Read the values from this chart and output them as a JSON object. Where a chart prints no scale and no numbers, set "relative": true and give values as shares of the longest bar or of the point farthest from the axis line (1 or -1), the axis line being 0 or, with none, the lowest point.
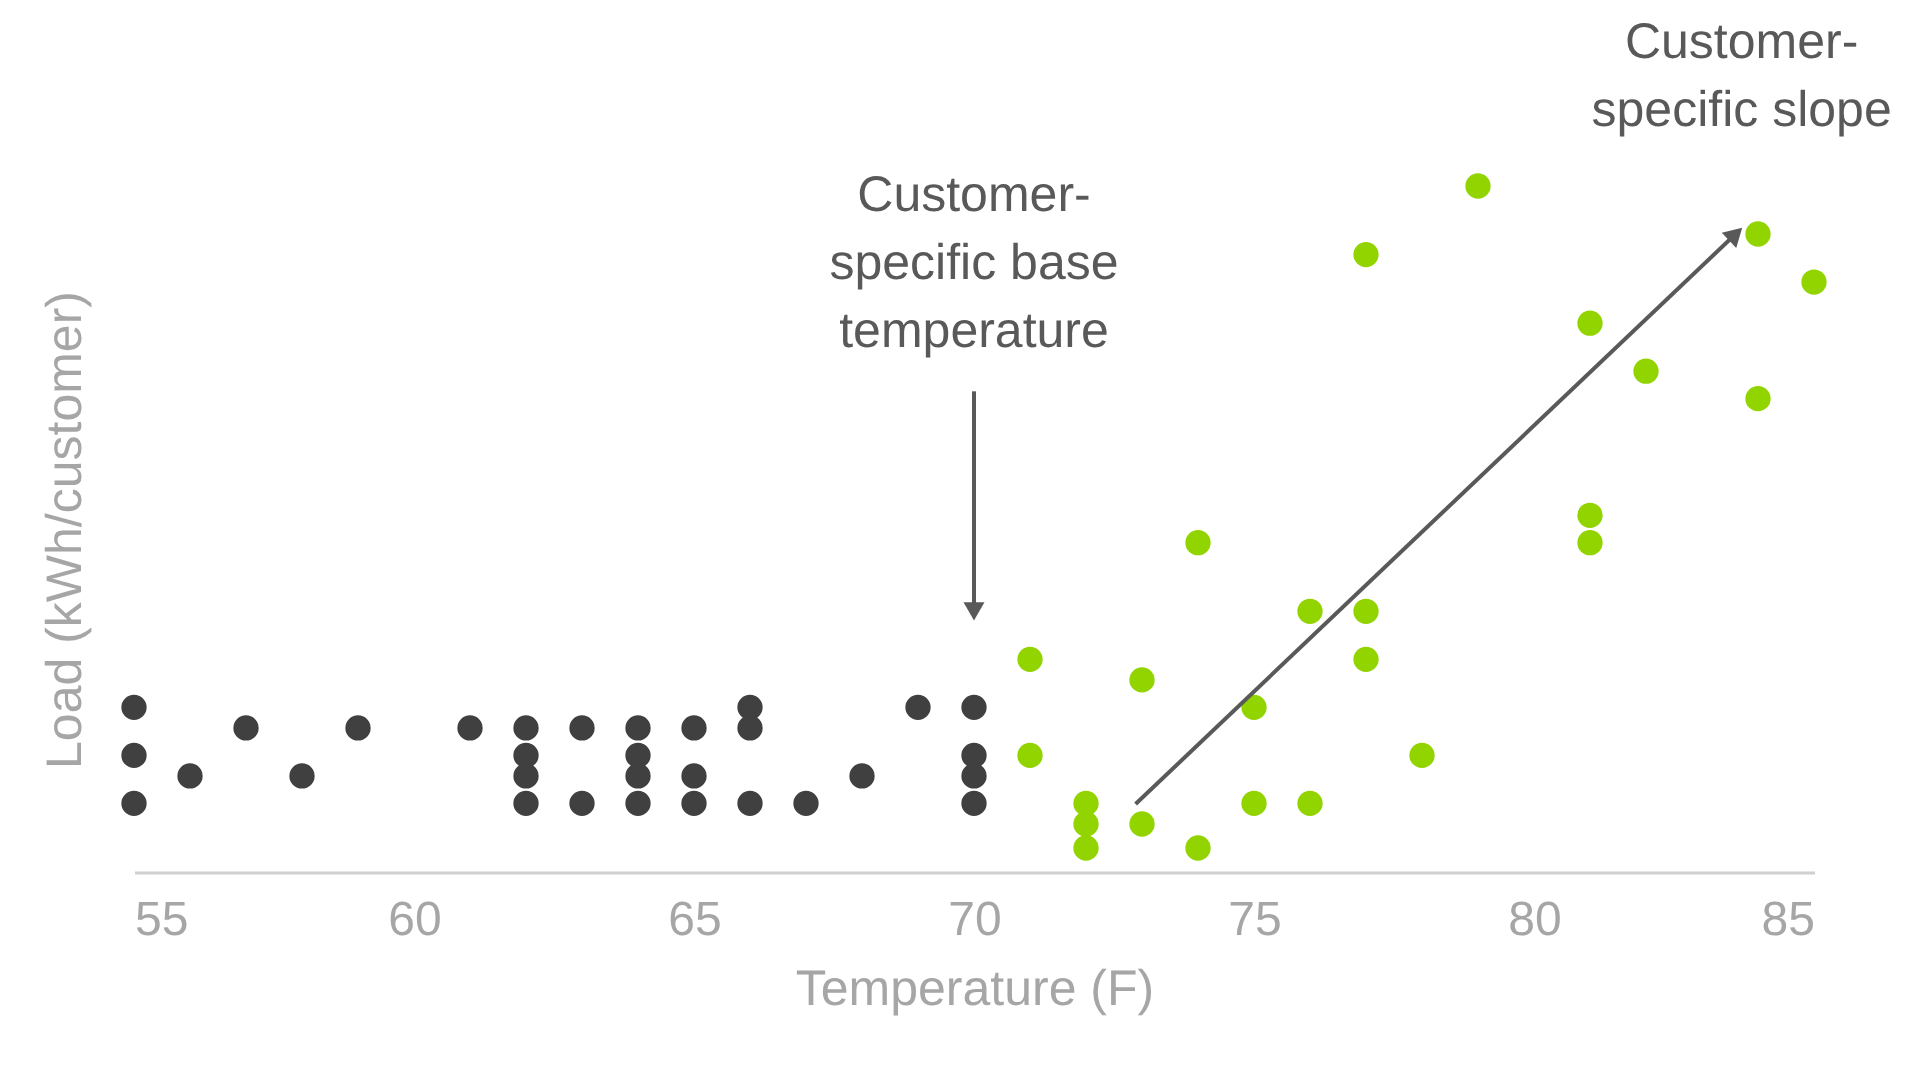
{
  "chart_data": {
    "type": "scatter",
    "xlabel": "Temperature (F)",
    "ylabel": "Load (kWh/customer)",
    "xlim": [
      55,
      85
    ],
    "xticks": [
      55,
      60,
      65,
      70,
      75,
      80,
      85
    ],
    "relative": true,
    "marker": "circle",
    "series": [
      {
        "color": "#404040",
        "x": [
          55,
          55,
          55,
          56,
          57,
          58,
          59,
          61,
          62,
          62,
          62,
          62,
          63,
          63,
          64,
          64,
          64,
          64,
          65,
          65,
          65,
          66,
          66,
          66,
          67,
          68,
          69,
          70,
          70,
          70,
          70
        ],
        "values": [
          0.24,
          0.17,
          0.1,
          0.14,
          0.21,
          0.14,
          0.21,
          0.21,
          0.21,
          0.17,
          0.14,
          0.1,
          0.21,
          0.1,
          0.21,
          0.17,
          0.14,
          0.1,
          0.21,
          0.14,
          0.1,
          0.24,
          0.21,
          0.1,
          0.1,
          0.14,
          0.24,
          0.24,
          0.17,
          0.14,
          0.1
        ]
      },
      {
        "color": "#92d400",
        "x": [
          71,
          71,
          72,
          72,
          72,
          73,
          73,
          74,
          74,
          75,
          75,
          76,
          76,
          77,
          77,
          77,
          78,
          79,
          81,
          81,
          81,
          82,
          84,
          84,
          85
        ],
        "values": [
          0.31,
          0.17,
          0.1,
          0.07,
          0.035,
          0.28,
          0.07,
          0.48,
          0.035,
          0.24,
          0.1,
          0.38,
          0.1,
          0.9,
          0.38,
          0.31,
          0.17,
          1,
          0.8,
          0.52,
          0.48,
          0.73,
          0.93,
          0.69,
          0.86
        ]
      }
    ],
    "annotations": [
      {
        "text": "Customer-specific base temperature",
        "x": 70,
        "y": 0.38
      },
      {
        "text": "Customer-specific slope",
        "x": 83.6,
        "y": 0.93
      }
    ]
  }
}
